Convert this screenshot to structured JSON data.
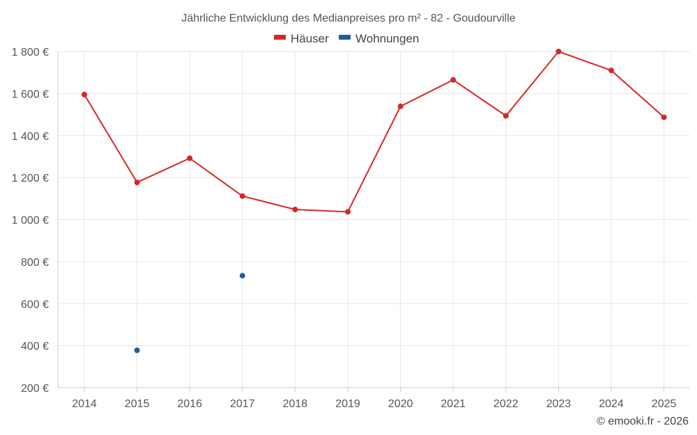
{
  "chart_data": {
    "type": "line",
    "title": "Jährliche Entwicklung des Medianpreises pro m² - 82 - Goudourville",
    "x": [
      "2014",
      "2015",
      "2016",
      "2017",
      "2018",
      "2019",
      "2020",
      "2021",
      "2022",
      "2023",
      "2024",
      "2025"
    ],
    "y_ticks": [
      "1 800 €",
      "1 600 €",
      "1 400 €",
      "1 200 €",
      "1 000 €",
      "800 €",
      "600 €",
      "400 €",
      "200 €"
    ],
    "y_tick_values": [
      1800,
      1600,
      1400,
      1200,
      1000,
      800,
      600,
      400,
      200
    ],
    "ylim": [
      200,
      1800
    ],
    "grid": true,
    "legend_position": "top-center",
    "series": [
      {
        "name": "Häuser",
        "color": "#d62728",
        "values": [
          1595,
          1177,
          1292,
          1112,
          1048,
          1037,
          1539,
          1665,
          1494,
          1800,
          1710,
          1487
        ]
      },
      {
        "name": "Wohnungen",
        "color": "#1f5f99",
        "values": [
          null,
          378,
          null,
          733,
          null,
          null,
          null,
          null,
          null,
          null,
          null,
          null
        ]
      }
    ]
  },
  "credit": "© emooki.fr - 2026"
}
